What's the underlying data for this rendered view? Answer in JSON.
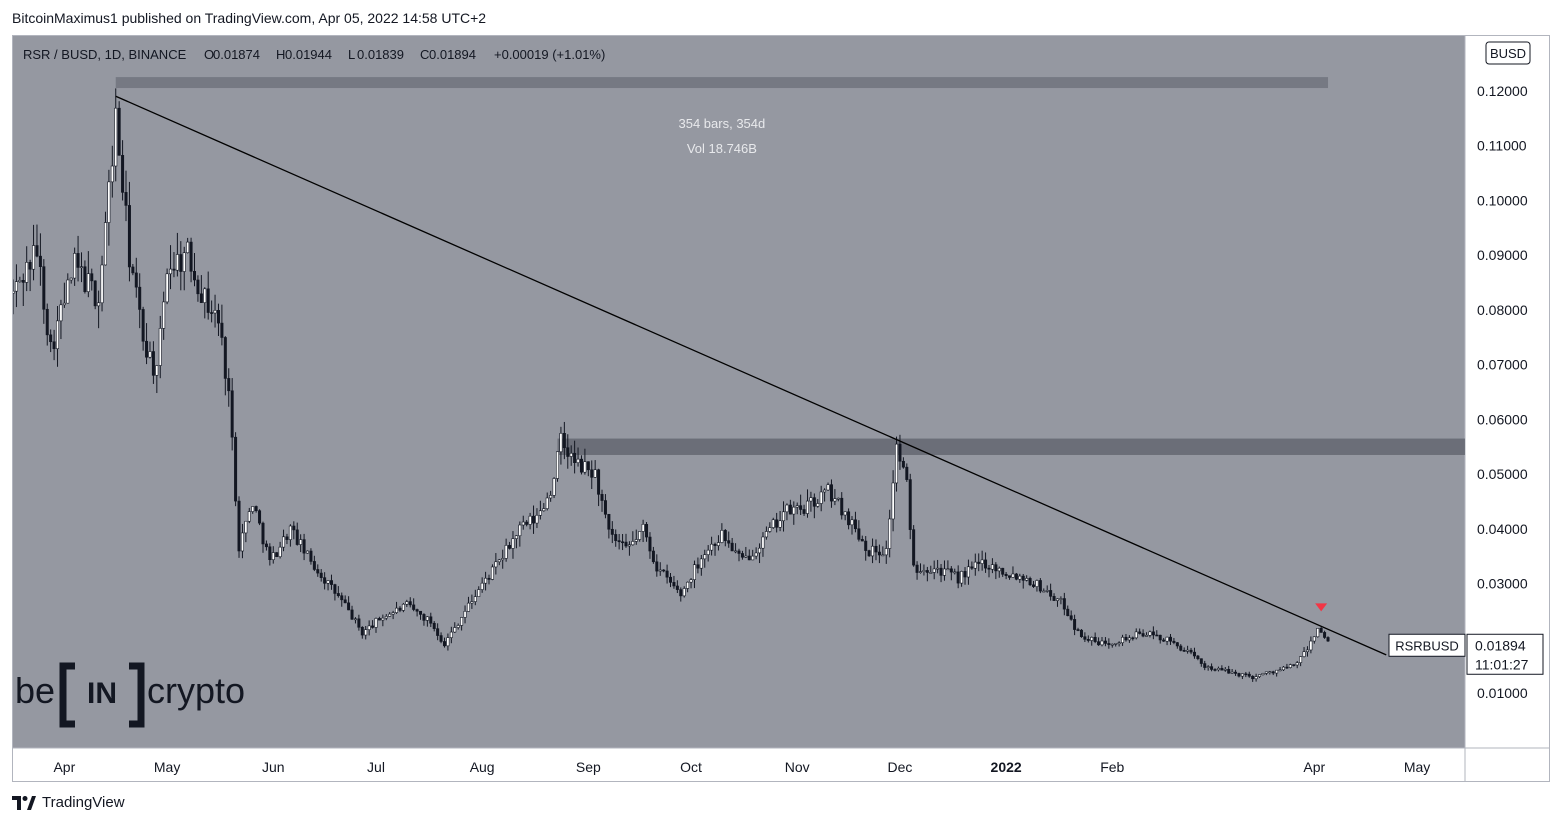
{
  "publisher": "BitcoinMaximus1 published on TradingView.com, Apr 05, 2022 14:58 UTC+2",
  "footer": {
    "brand": "TradingView",
    "icon": "tradingview-logo-icon"
  },
  "header": {
    "symbol": "RSR / BUSD, 1D, BINANCE",
    "ohlc": [
      {
        "key": "O",
        "value": "0.01874"
      },
      {
        "key": "H",
        "value": "0.01944"
      },
      {
        "key": "L",
        "value": "0.01839"
      },
      {
        "key": "C",
        "value": "0.01894"
      }
    ],
    "change": "+0.00019 (+1.01%)"
  },
  "currency_badge": "BUSD",
  "measure": {
    "bars": "354 bars, 354d",
    "volume": "Vol 18.746B"
  },
  "price_label": {
    "ticker": "RSRBUSD",
    "price": "0.01894",
    "countdown": "11:01:27"
  },
  "watermark": {
    "prefix": "be",
    "mark": "IN",
    "suffix": "crypto"
  },
  "colors": {
    "chart_bg": "#9598a1",
    "candle": "#131722",
    "zone": "#5d606b",
    "axis_bg": "#ffffff",
    "signal": "#f23645",
    "trendline": "#000000"
  },
  "chart_data": {
    "type": "candlestick",
    "symbol": "RSR / BUSD",
    "interval": "1D",
    "ylim": [
      0.0,
      0.13
    ],
    "y_ticks": [
      0.01,
      0.02,
      0.03,
      0.04,
      0.05,
      0.06,
      0.07,
      0.08,
      0.09,
      0.1,
      0.11,
      0.12
    ],
    "y_tick_labels": [
      "0.01000",
      "",
      "0.03000",
      "0.04000",
      "0.05000",
      "0.06000",
      "0.07000",
      "0.08000",
      "0.09000",
      "0.10000",
      "0.11000",
      "0.12000"
    ],
    "x_ticks": [
      {
        "date": "2021-04-01",
        "label": "Apr"
      },
      {
        "date": "2021-05-01",
        "label": "May"
      },
      {
        "date": "2021-06-01",
        "label": "Jun"
      },
      {
        "date": "2021-07-01",
        "label": "Jul"
      },
      {
        "date": "2021-08-01",
        "label": "Aug"
      },
      {
        "date": "2021-09-01",
        "label": "Sep"
      },
      {
        "date": "2021-10-01",
        "label": "Oct"
      },
      {
        "date": "2021-11-01",
        "label": "Nov"
      },
      {
        "date": "2021-12-01",
        "label": "Dec"
      },
      {
        "date": "2022-01-01",
        "label": "2022"
      },
      {
        "date": "2022-02-01",
        "label": "Feb"
      },
      {
        "date": "2022-04-01",
        "label": "Apr"
      },
      {
        "date": "2022-05-01",
        "label": "May"
      }
    ],
    "x_range": [
      "2021-03-17",
      "2022-05-15"
    ],
    "price_path": [
      [
        "2021-03-17",
        0.083
      ],
      [
        "2021-03-24",
        0.091
      ],
      [
        "2021-03-28",
        0.073
      ],
      [
        "2021-04-04",
        0.088
      ],
      [
        "2021-04-11",
        0.082
      ],
      [
        "2021-04-16",
        0.115
      ],
      [
        "2021-04-20",
        0.09
      ],
      [
        "2021-04-24",
        0.075
      ],
      [
        "2021-04-28",
        0.068
      ],
      [
        "2021-05-01",
        0.088
      ],
      [
        "2021-05-07",
        0.09
      ],
      [
        "2021-05-12",
        0.082
      ],
      [
        "2021-05-16",
        0.078
      ],
      [
        "2021-05-19",
        0.065
      ],
      [
        "2021-05-22",
        0.037
      ],
      [
        "2021-05-26",
        0.045
      ],
      [
        "2021-05-31",
        0.034
      ],
      [
        "2021-06-06",
        0.04
      ],
      [
        "2021-06-12",
        0.034
      ],
      [
        "2021-06-17",
        0.03
      ],
      [
        "2021-06-22",
        0.026
      ],
      [
        "2021-06-27",
        0.021
      ],
      [
        "2021-07-03",
        0.024
      ],
      [
        "2021-07-10",
        0.026
      ],
      [
        "2021-07-17",
        0.023
      ],
      [
        "2021-07-21",
        0.019
      ],
      [
        "2021-07-25",
        0.023
      ],
      [
        "2021-07-31",
        0.029
      ],
      [
        "2021-08-06",
        0.034
      ],
      [
        "2021-08-12",
        0.04
      ],
      [
        "2021-08-17",
        0.042
      ],
      [
        "2021-08-21",
        0.047
      ],
      [
        "2021-08-24",
        0.056
      ],
      [
        "2021-08-28",
        0.052
      ],
      [
        "2021-09-03",
        0.05
      ],
      [
        "2021-09-07",
        0.039
      ],
      [
        "2021-09-12",
        0.036
      ],
      [
        "2021-09-17",
        0.04
      ],
      [
        "2021-09-21",
        0.033
      ],
      [
        "2021-09-28",
        0.028
      ],
      [
        "2021-10-04",
        0.035
      ],
      [
        "2021-10-10",
        0.039
      ],
      [
        "2021-10-16",
        0.034
      ],
      [
        "2021-10-22",
        0.038
      ],
      [
        "2021-10-28",
        0.043
      ],
      [
        "2021-11-04",
        0.044
      ],
      [
        "2021-11-10",
        0.047
      ],
      [
        "2021-11-16",
        0.042
      ],
      [
        "2021-11-22",
        0.036
      ],
      [
        "2021-11-27",
        0.036
      ],
      [
        "2021-11-30",
        0.055
      ],
      [
        "2021-12-03",
        0.048
      ],
      [
        "2021-12-05",
        0.033
      ],
      [
        "2021-12-11",
        0.033
      ],
      [
        "2021-12-18",
        0.031
      ],
      [
        "2021-12-25",
        0.034
      ],
      [
        "2022-01-01",
        0.032
      ],
      [
        "2022-01-07",
        0.031
      ],
      [
        "2022-01-12",
        0.029
      ],
      [
        "2022-01-18",
        0.026
      ],
      [
        "2022-01-22",
        0.021
      ],
      [
        "2022-01-28",
        0.019
      ],
      [
        "2022-02-05",
        0.02
      ],
      [
        "2022-02-10",
        0.021
      ],
      [
        "2022-02-16",
        0.02
      ],
      [
        "2022-02-22",
        0.018
      ],
      [
        "2022-02-28",
        0.015
      ],
      [
        "2022-03-06",
        0.014
      ],
      [
        "2022-03-14",
        0.013
      ],
      [
        "2022-03-20",
        0.014
      ],
      [
        "2022-03-26",
        0.015
      ],
      [
        "2022-03-30",
        0.018
      ],
      [
        "2022-04-02",
        0.022
      ],
      [
        "2022-04-05",
        0.019
      ]
    ],
    "annotations": {
      "trendline": {
        "from": [
          "2021-04-16",
          0.119
        ],
        "to": [
          "2022-04-22",
          0.017
        ]
      },
      "resistance_zone": {
        "from": "2021-08-23",
        "to": "2022-05-15",
        "low": 0.0535,
        "high": 0.0565
      },
      "top_zone": {
        "from": "2021-04-16",
        "to": "2022-04-05",
        "low": 0.1205,
        "high": 0.1225
      },
      "signal_marker": {
        "date": "2022-04-03",
        "price": 0.0255,
        "color": "#f23645",
        "shape": "down-triangle"
      }
    },
    "last_price": 0.01894
  }
}
